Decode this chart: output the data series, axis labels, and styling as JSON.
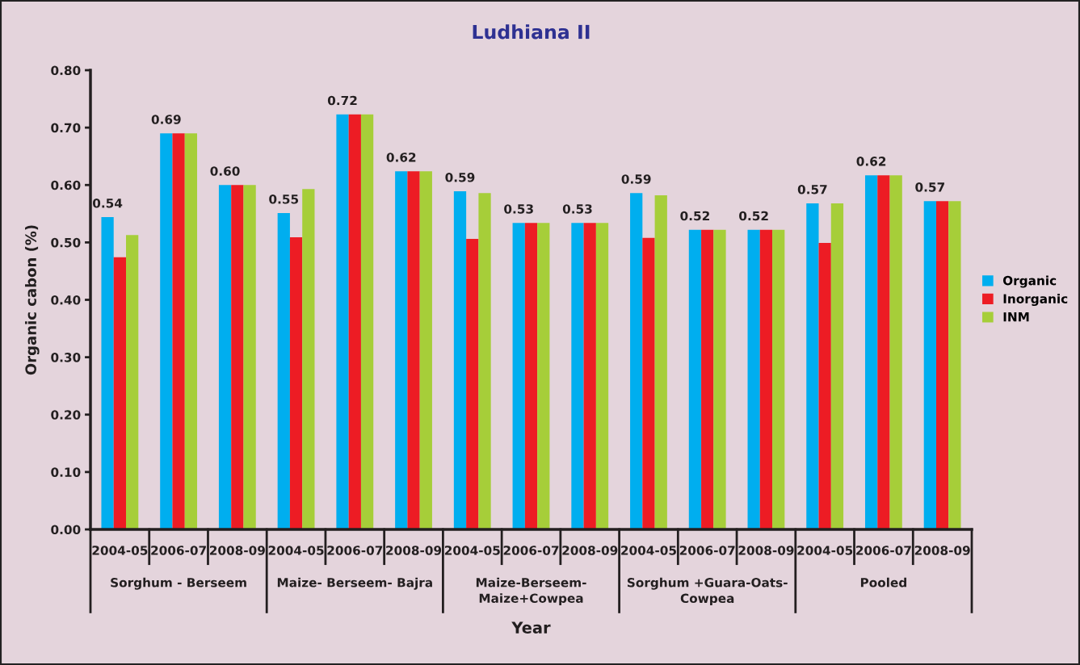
{
  "chart_data": {
    "type": "bar",
    "title": "Ludhiana II",
    "xlabel": "Year",
    "ylabel": "Organic cabon (%)",
    "categories": [
      "2004-05",
      "2006-07",
      "2008-09",
      "2004-05",
      "2006-07",
      "2008-09",
      "2004-05",
      "2006-07",
      "2008-09",
      "2004-05",
      "2006-07",
      "2008-09",
      "2004-05",
      "2006-07",
      "2008-09"
    ],
    "annotations": [
      "Sorghum - Berseem",
      "Maize- Berseem- Bajra",
      "Maize-Berseem-\nMaize+Cowpea",
      "Sorghum +Guara-Oats-\nCowpea",
      "Pooled"
    ],
    "series": [
      {
        "name": "Organic",
        "color": "#00aeef",
        "values": [
          0.544,
          0.69,
          0.6,
          0.551,
          0.723,
          0.624,
          0.589,
          0.534,
          0.534,
          0.586,
          0.522,
          0.522,
          0.568,
          0.617,
          0.572
        ],
        "value_labels": [
          "0.54",
          "0.69",
          "0.60",
          "0.55",
          "0.72",
          "0.62",
          "0.59",
          "0.53",
          "0.53",
          "0.59",
          "0.52",
          "0.52",
          "0.57",
          "0.62",
          "0.57"
        ]
      },
      {
        "name": "Inorganic",
        "color": "#ed1c24",
        "values": [
          0.474,
          0.69,
          0.6,
          0.509,
          0.723,
          0.624,
          0.506,
          0.534,
          0.534,
          0.508,
          0.522,
          0.522,
          0.499,
          0.617,
          0.572
        ]
      },
      {
        "name": "INM",
        "color": "#a6ce39",
        "values": [
          0.513,
          0.69,
          0.6,
          0.593,
          0.723,
          0.624,
          0.586,
          0.534,
          0.534,
          0.582,
          0.522,
          0.522,
          0.568,
          0.617,
          0.572
        ]
      }
    ],
    "ylim": [
      0,
      0.8
    ],
    "yticks": [
      {
        "value": 0,
        "label": "0.00"
      },
      {
        "value": 0.1,
        "label": "0.10"
      },
      {
        "value": 0.2,
        "label": "0.20"
      },
      {
        "value": 0.3,
        "label": "0.30"
      },
      {
        "value": 0.4,
        "label": "0.40"
      },
      {
        "value": 0.5,
        "label": "0.50"
      },
      {
        "value": 0.6,
        "label": "0.60"
      },
      {
        "value": 0.7,
        "label": "0.70"
      },
      {
        "value": 0.8,
        "label": "0.80"
      }
    ],
    "grid": false,
    "legend": "right"
  }
}
